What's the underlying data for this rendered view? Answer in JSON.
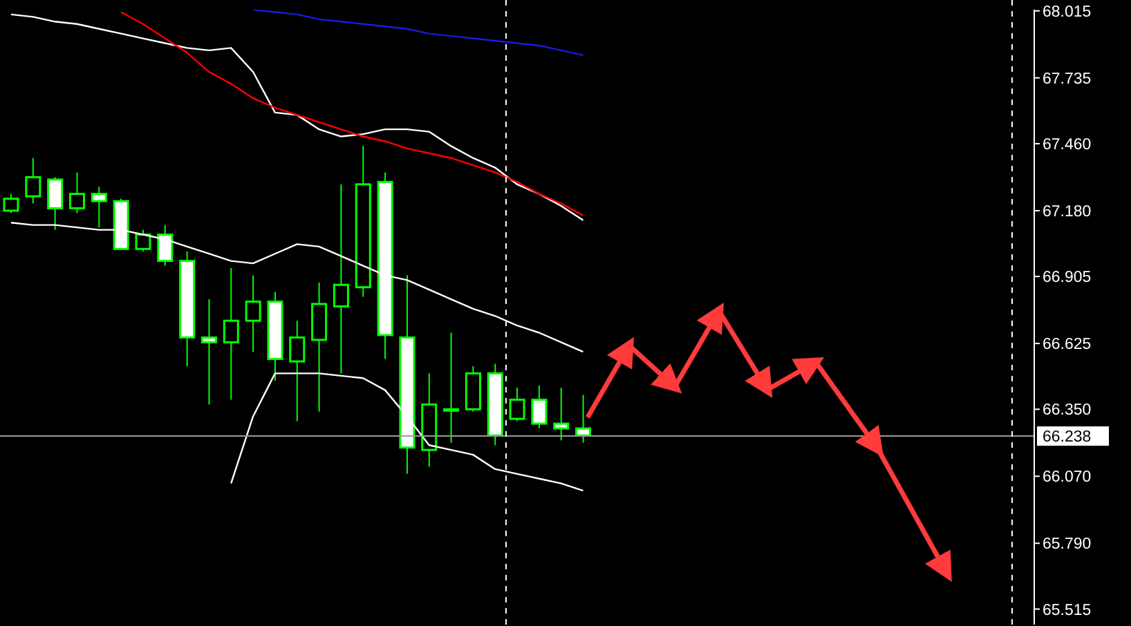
{
  "chart_data": {
    "type": "candlestick",
    "color": "#00ff00",
    "categories": [
      null,
      null,
      null,
      null,
      null,
      null,
      null,
      null,
      null,
      null,
      null,
      null,
      null,
      null,
      null,
      null,
      null,
      null,
      null,
      null,
      null,
      null,
      null,
      null,
      null,
      null,
      null,
      null,
      null,
      null,
      null,
      null,
      null,
      null,
      null,
      null,
      null,
      null,
      null,
      null,
      null,
      null,
      null,
      null,
      null,
      null,
      null
    ],
    "ohlc": [
      [
        67.18,
        67.25,
        67.17,
        67.23
      ],
      [
        67.24,
        67.4,
        67.21,
        67.32
      ],
      [
        67.31,
        67.32,
        67.1,
        67.19
      ],
      [
        67.19,
        67.34,
        67.17,
        67.25
      ],
      [
        67.25,
        67.28,
        67.11,
        67.22
      ],
      [
        67.22,
        67.23,
        67.02,
        67.02
      ],
      [
        67.02,
        67.1,
        67.01,
        67.08
      ],
      [
        67.08,
        67.12,
        66.95,
        66.97
      ],
      [
        66.97,
        67.01,
        66.53,
        66.65
      ],
      [
        66.65,
        66.81,
        66.37,
        66.63
      ],
      [
        66.63,
        66.94,
        66.39,
        66.72
      ],
      [
        66.72,
        66.91,
        66.59,
        66.8
      ],
      [
        66.8,
        66.84,
        66.47,
        66.56
      ],
      [
        66.55,
        66.72,
        66.3,
        66.65
      ],
      [
        66.64,
        66.88,
        66.34,
        66.79
      ],
      [
        66.78,
        67.29,
        66.5,
        66.87
      ],
      [
        66.86,
        67.45,
        66.82,
        67.29
      ],
      [
        67.3,
        67.34,
        66.56,
        66.66
      ],
      [
        66.65,
        66.91,
        66.08,
        66.19
      ],
      [
        66.18,
        66.5,
        66.11,
        66.37
      ],
      [
        66.35,
        66.67,
        66.21,
        66.35
      ],
      [
        66.35,
        66.53,
        66.34,
        66.5
      ],
      [
        66.5,
        66.54,
        66.2,
        66.24
      ],
      [
        66.31,
        66.44,
        66.3,
        66.39
      ],
      [
        66.39,
        66.45,
        66.27,
        66.29
      ],
      [
        66.29,
        66.44,
        66.22,
        66.27
      ],
      [
        66.27,
        66.41,
        66.21,
        66.24
      ],
      null,
      null,
      null,
      null,
      null,
      null,
      null,
      null,
      null,
      null,
      null,
      null,
      null,
      null,
      null,
      null,
      null,
      null,
      null,
      null
    ],
    "series": [
      {
        "type": "line",
        "color": "#ffffff",
        "values": [
          68.0,
          67.99,
          67.97,
          67.96,
          67.94,
          67.92,
          67.9,
          67.88,
          67.86,
          67.85,
          67.86,
          67.76,
          67.59,
          67.58,
          67.52,
          67.49,
          67.5,
          67.52,
          67.52,
          67.51,
          67.45,
          67.4,
          67.36,
          67.29,
          67.25,
          67.2,
          67.14,
          null,
          null,
          null,
          null,
          null,
          null,
          null,
          null,
          null,
          null,
          null,
          null,
          null,
          null,
          null,
          null,
          null,
          null,
          null,
          null
        ]
      },
      {
        "type": "line",
        "color": "#ffffff",
        "values": [
          67.13,
          67.12,
          67.12,
          67.11,
          67.1,
          67.1,
          67.08,
          67.06,
          67.03,
          67.0,
          66.97,
          66.96,
          67.0,
          67.04,
          67.03,
          66.99,
          66.95,
          66.91,
          66.89,
          66.85,
          66.81,
          66.77,
          66.74,
          66.7,
          66.67,
          66.63,
          66.59,
          null,
          null,
          null,
          null,
          null,
          null,
          null,
          null,
          null,
          null,
          null,
          null,
          null,
          null,
          null,
          null,
          null,
          null,
          null,
          null
        ]
      },
      {
        "type": "line",
        "color": "#ffffff",
        "values": [
          null,
          null,
          null,
          null,
          null,
          null,
          null,
          null,
          null,
          null,
          66.04,
          66.32,
          66.5,
          66.5,
          66.5,
          66.49,
          66.48,
          66.43,
          66.32,
          66.2,
          66.18,
          66.16,
          66.1,
          66.08,
          66.06,
          66.04,
          66.01,
          null,
          null,
          null,
          null,
          null,
          null,
          null,
          null,
          null,
          null,
          null,
          null,
          null,
          null,
          null,
          null,
          null,
          null,
          null,
          null
        ]
      },
      {
        "type": "line",
        "color": "#ff0000",
        "values": [
          null,
          null,
          null,
          null,
          null,
          68.01,
          67.96,
          67.9,
          67.84,
          67.76,
          67.71,
          67.65,
          67.61,
          67.58,
          67.55,
          67.52,
          67.49,
          67.47,
          67.44,
          67.42,
          67.4,
          67.37,
          67.34,
          67.3,
          67.25,
          67.21,
          67.16,
          null,
          null,
          null,
          null,
          null,
          null,
          null,
          null,
          null,
          null,
          null,
          null,
          null,
          null,
          null,
          null,
          null,
          null,
          null,
          null
        ]
      },
      {
        "type": "line",
        "color": "#1a1adf",
        "values": [
          null,
          null,
          null,
          null,
          null,
          null,
          null,
          null,
          null,
          null,
          null,
          68.02,
          68.01,
          68.0,
          67.98,
          67.97,
          67.96,
          67.95,
          67.94,
          67.92,
          67.91,
          67.9,
          67.89,
          67.88,
          67.87,
          67.85,
          67.83,
          null,
          null,
          null,
          null,
          null,
          null,
          null,
          null,
          null,
          null,
          null,
          null,
          null,
          null,
          null,
          null,
          null,
          null,
          null,
          null
        ]
      }
    ],
    "ylim": [
      65.45,
      68.02
    ],
    "yticks": [
      68.015,
      67.735,
      {
        "value": 67.46,
        "label": "67.460"
      },
      {
        "value": 67.18,
        "label": "67.180"
      },
      66.905,
      66.625,
      {
        "value": 66.35,
        "label": "66.350"
      },
      {
        "value": 66.07,
        "label": "66.070"
      },
      {
        "value": 65.79,
        "label": "65.790"
      },
      65.515
    ],
    "tick_labels": "y",
    "ref_lines": [
      {
        "axis": "y",
        "value": 66.238,
        "label": "66.238",
        "color": "#9a9a9a"
      }
    ]
  }
}
